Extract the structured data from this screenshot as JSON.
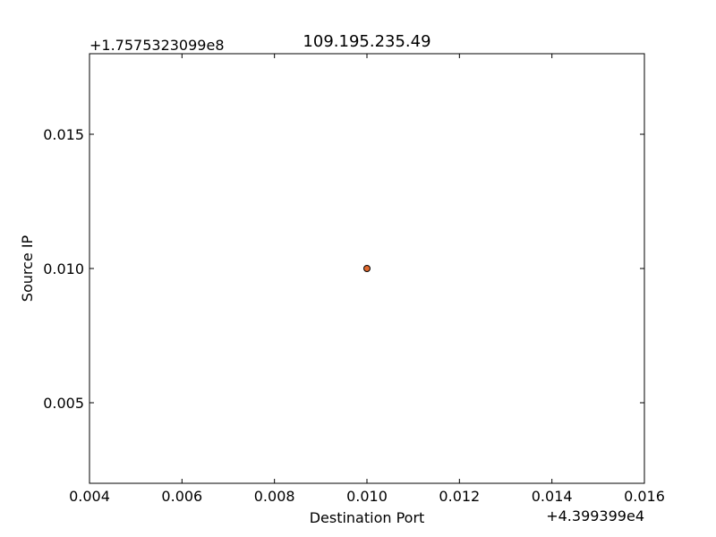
{
  "chart_data": {
    "type": "scatter",
    "title": "109.195.235.49",
    "xlabel": "Destination Port",
    "ylabel": "Source IP",
    "x_offset_label": "+4.399399e4",
    "y_offset_label": "+1.7575323099e8",
    "xlim": [
      0.004,
      0.016
    ],
    "ylim": [
      0.002,
      0.018
    ],
    "x_ticks": [
      0.004,
      0.006,
      0.008,
      0.01,
      0.012,
      0.014,
      0.016
    ],
    "x_tick_labels": [
      "0.004",
      "0.006",
      "0.008",
      "0.010",
      "0.012",
      "0.014",
      "0.016"
    ],
    "y_ticks": [
      0.005,
      0.01,
      0.015
    ],
    "y_tick_labels": [
      "0.005",
      "0.010",
      "0.015"
    ],
    "points": [
      {
        "x": 0.01,
        "y": 0.01
      }
    ],
    "point_color": "#e1692e",
    "grid": false
  }
}
